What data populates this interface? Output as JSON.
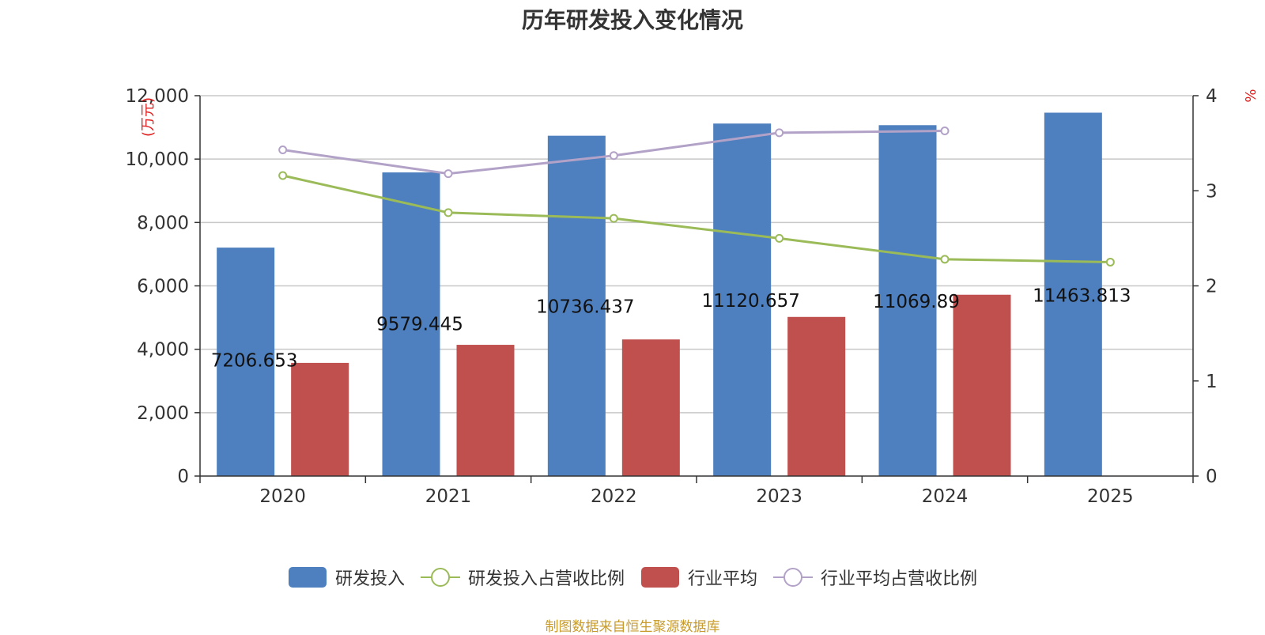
{
  "chart_data": {
    "type": "bar",
    "title": "历年研发投入变化情况",
    "categories": [
      "2020",
      "2021",
      "2022",
      "2023",
      "2024",
      "2025"
    ],
    "ylabel_left": "(万元)",
    "ylabel_right": "%",
    "ylim_left": [
      0,
      12000
    ],
    "yticks_left": [
      0,
      2000,
      4000,
      6000,
      8000,
      10000,
      12000
    ],
    "ytick_labels_left": [
      "0",
      "2,000",
      "4,000",
      "6,000",
      "8,000",
      "10,000",
      "12,000"
    ],
    "ylim_right": [
      0,
      4
    ],
    "yticks_right": [
      0,
      1,
      2,
      3,
      4
    ],
    "ytick_labels_right": [
      "0",
      "1",
      "2",
      "3",
      "4"
    ],
    "grid": true,
    "series": [
      {
        "name": "研发投入",
        "kind": "bar",
        "axis": "left",
        "color": "#4e7fbe",
        "values": [
          7206.653,
          9579.445,
          10736.437,
          11120.657,
          11069.89,
          11463.813
        ],
        "labels": [
          "7206.653",
          "9579.445",
          "10736.437",
          "11120.657",
          "11069.89",
          "11463.813"
        ]
      },
      {
        "name": "研发投入占营收比例",
        "kind": "line",
        "axis": "right",
        "color": "#9bbb59",
        "values": [
          3.16,
          2.77,
          2.71,
          2.5,
          2.28,
          2.25
        ]
      },
      {
        "name": "行业平均",
        "kind": "bar",
        "axis": "left",
        "color": "#c0504d",
        "values": [
          3570,
          4140,
          4310,
          5020,
          5720,
          null
        ]
      },
      {
        "name": "行业平均占营收比例",
        "kind": "line",
        "axis": "right",
        "color": "#b3a2c7",
        "values": [
          3.43,
          3.18,
          3.37,
          3.61,
          3.63,
          null
        ]
      }
    ],
    "source": "制图数据来自恒生聚源数据库"
  }
}
